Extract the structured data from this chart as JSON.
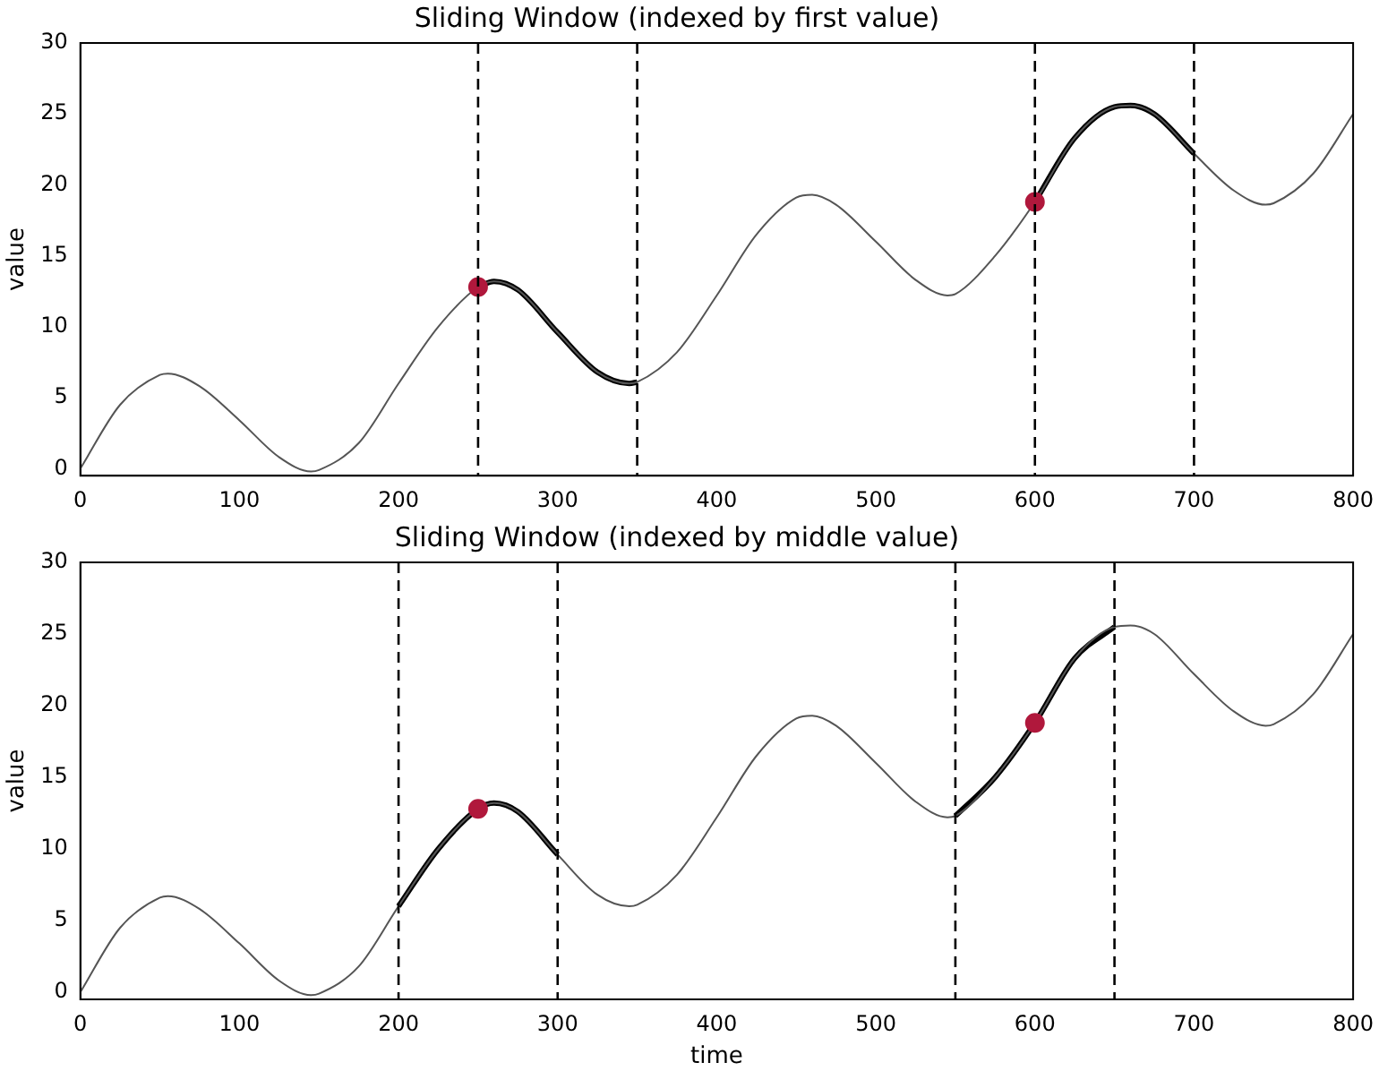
{
  "chart_data": [
    {
      "type": "line",
      "title": "Sliding Window (indexed by first value)",
      "ylabel": "value",
      "xlim": [
        0,
        800
      ],
      "ylim": [
        -0.5,
        30
      ],
      "xticks": [
        0,
        100,
        200,
        300,
        400,
        500,
        600,
        700,
        800
      ],
      "yticks": [
        0,
        5,
        10,
        15,
        20,
        25,
        30
      ],
      "grid": false,
      "legend": false,
      "marker": "none",
      "line_style": "solid",
      "series": [
        {
          "type": "line",
          "color": "#555555",
          "x": [
            0,
            25,
            50,
            55,
            75,
            100,
            125,
            145,
            150,
            175,
            200,
            225,
            250,
            260,
            275,
            300,
            325,
            345,
            350,
            375,
            400,
            425,
            450,
            460,
            475,
            500,
            525,
            545,
            550,
            575,
            600,
            625,
            650,
            660,
            675,
            700,
            725,
            745,
            750,
            775,
            800
          ],
          "values": [
            0,
            4.5,
            6.6,
            6.7,
            5.8,
            3.4,
            0.8,
            -0.2,
            -0.1,
            1.8,
            6.0,
            10.0,
            12.8,
            13.2,
            12.6,
            9.6,
            6.8,
            6.0,
            6.1,
            8.2,
            12.2,
            16.5,
            19.1,
            19.3,
            18.6,
            16.0,
            13.3,
            12.2,
            12.3,
            15.0,
            18.8,
            23.3,
            25.5,
            25.6,
            25.0,
            22.2,
            19.6,
            18.6,
            18.7,
            20.8,
            25.0
          ]
        },
        {
          "type": "line",
          "color": "#000000",
          "x": [
            250,
            260,
            275,
            300,
            325,
            345,
            350
          ],
          "values": [
            12.8,
            13.2,
            12.6,
            9.6,
            6.8,
            6.0,
            6.1
          ]
        },
        {
          "type": "line",
          "color": "#000000",
          "x": [
            600,
            625,
            650,
            660,
            675,
            700
          ],
          "values": [
            18.8,
            23.3,
            25.5,
            25.6,
            25.0,
            22.2
          ]
        },
        {
          "type": "scatter",
          "color": "#b0183c",
          "marker": "circle",
          "x": [
            250,
            600
          ],
          "values": [
            12.8,
            18.8
          ]
        }
      ],
      "ref_lines": [
        {
          "axis": "x",
          "value": 250,
          "color": "#000000",
          "line_style": "dashed"
        },
        {
          "axis": "x",
          "value": 350,
          "color": "#000000",
          "line_style": "dashed"
        },
        {
          "axis": "x",
          "value": 600,
          "color": "#000000",
          "line_style": "dashed"
        },
        {
          "axis": "x",
          "value": 700,
          "color": "#000000",
          "line_style": "dashed"
        }
      ]
    },
    {
      "type": "line",
      "title": "Sliding Window (indexed by middle value)",
      "xlabel": "time",
      "ylabel": "value",
      "xlim": [
        0,
        800
      ],
      "ylim": [
        -0.5,
        30
      ],
      "xticks": [
        0,
        100,
        200,
        300,
        400,
        500,
        600,
        700,
        800
      ],
      "yticks": [
        0,
        5,
        10,
        15,
        20,
        25,
        30
      ],
      "grid": false,
      "legend": false,
      "marker": "none",
      "line_style": "solid",
      "series": [
        {
          "type": "line",
          "color": "#555555",
          "x": [
            0,
            25,
            50,
            55,
            75,
            100,
            125,
            145,
            150,
            175,
            200,
            225,
            250,
            260,
            275,
            300,
            325,
            345,
            350,
            375,
            400,
            425,
            450,
            460,
            475,
            500,
            525,
            545,
            550,
            575,
            600,
            625,
            650,
            660,
            675,
            700,
            725,
            745,
            750,
            775,
            800
          ],
          "values": [
            0,
            4.5,
            6.6,
            6.7,
            5.8,
            3.4,
            0.8,
            -0.2,
            -0.1,
            1.8,
            6.0,
            10.0,
            12.8,
            13.2,
            12.6,
            9.6,
            6.8,
            6.0,
            6.1,
            8.2,
            12.2,
            16.5,
            19.1,
            19.3,
            18.6,
            16.0,
            13.3,
            12.2,
            12.3,
            15.0,
            18.8,
            23.3,
            25.5,
            25.6,
            25.0,
            22.2,
            19.6,
            18.6,
            18.7,
            20.8,
            25.0
          ]
        },
        {
          "type": "line",
          "color": "#000000",
          "x": [
            200,
            225,
            250,
            260,
            275,
            300
          ],
          "values": [
            6.0,
            10.0,
            12.8,
            13.2,
            12.6,
            9.6
          ]
        },
        {
          "type": "line",
          "color": "#000000",
          "x": [
            550,
            575,
            600,
            625,
            650
          ],
          "values": [
            12.3,
            15.0,
            18.8,
            23.3,
            25.5
          ]
        },
        {
          "type": "scatter",
          "color": "#b0183c",
          "marker": "circle",
          "x": [
            250,
            600
          ],
          "values": [
            12.8,
            18.8
          ]
        }
      ],
      "ref_lines": [
        {
          "axis": "x",
          "value": 200,
          "color": "#000000",
          "line_style": "dashed"
        },
        {
          "axis": "x",
          "value": 300,
          "color": "#000000",
          "line_style": "dashed"
        },
        {
          "axis": "x",
          "value": 550,
          "color": "#000000",
          "line_style": "dashed"
        },
        {
          "axis": "x",
          "value": 650,
          "color": "#000000",
          "line_style": "dashed"
        }
      ]
    }
  ]
}
